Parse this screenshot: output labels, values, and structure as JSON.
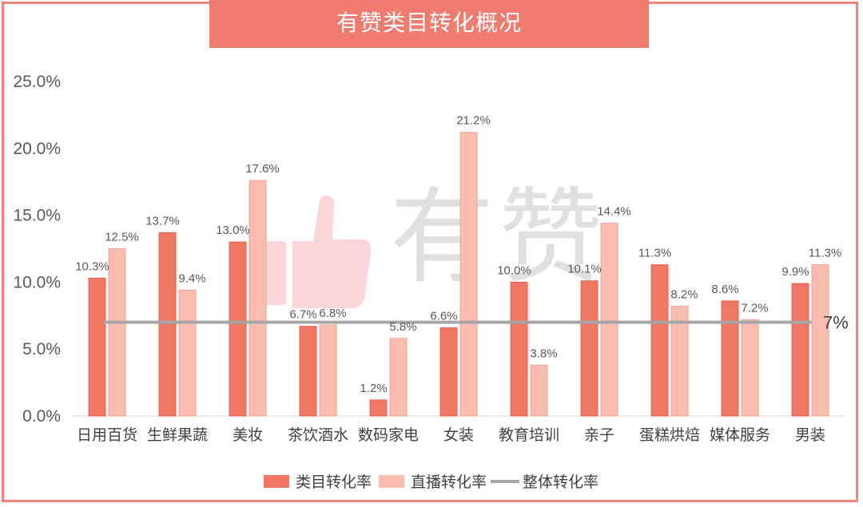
{
  "title": "有赞类目转化概况",
  "watermark": "有赞",
  "colors": {
    "category": "#f07766",
    "live": "#fbbcb1",
    "overall": "#a6a6a6",
    "frame": "#f2857b"
  },
  "chart_data": {
    "type": "bar",
    "title": "有赞类目转化概况",
    "categories": [
      "日用百货",
      "生鲜果蔬",
      "美妆",
      "茶饮酒水",
      "数码家电",
      "女装",
      "教育培训",
      "亲子",
      "蛋糕烘焙",
      "媒体服务",
      "男装"
    ],
    "series": [
      {
        "name": "类目转化率",
        "values": [
          10.3,
          13.7,
          13.0,
          6.7,
          1.2,
          6.6,
          10.0,
          10.1,
          11.3,
          8.6,
          9.9
        ],
        "labels": [
          "10.3%",
          "13.7%",
          "13.0%",
          "6.7%",
          "1.2%",
          "6.6%",
          "10.0%",
          "10.1%",
          "11.3%",
          "8.6%",
          "9.9%"
        ]
      },
      {
        "name": "直播转化率",
        "values": [
          12.5,
          9.4,
          17.6,
          6.8,
          5.8,
          21.2,
          3.8,
          14.4,
          8.2,
          7.2,
          11.3
        ],
        "labels": [
          "12.5%",
          "9.4%",
          "17.6%",
          "6.8%",
          "5.8%",
          "21.2%",
          "3.8%",
          "14.4%",
          "8.2%",
          "7.2%",
          "11.3%"
        ]
      }
    ],
    "overall": {
      "name": "整体转化率",
      "value": 7,
      "label": "7%"
    },
    "yticks": [
      {
        "value": 0,
        "label": "0.0%"
      },
      {
        "value": 5,
        "label": "5.0%"
      },
      {
        "value": 10,
        "label": "10.0%"
      },
      {
        "value": 15,
        "label": "15.0%"
      },
      {
        "value": 20,
        "label": "20.0%"
      },
      {
        "value": 25,
        "label": "25.0%"
      }
    ],
    "ylim": [
      0,
      25
    ],
    "grid": false,
    "legend_position": "bottom"
  }
}
